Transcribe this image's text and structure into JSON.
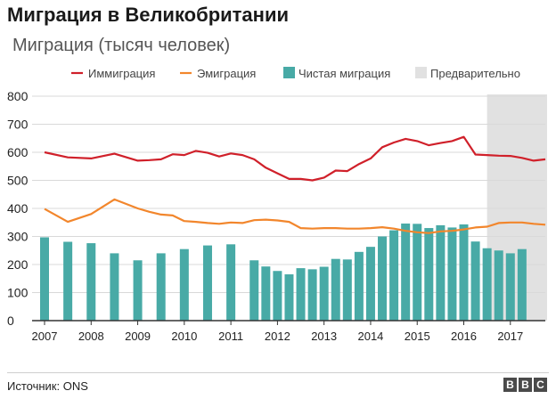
{
  "title": "Миграция в Великобритании",
  "subtitle": "Миграция (тысяч человек)",
  "source": "Источник: ONS",
  "logo": [
    "B",
    "B",
    "C"
  ],
  "colors": {
    "immigration": "#d0202a",
    "emigration": "#f2862c",
    "net": "#48aaa6",
    "provisional": "#e1e1e1",
    "grid": "#d9d9d9",
    "axis": "#333333"
  },
  "chart_data": {
    "type": "bar",
    "xlabel": "",
    "ylabel": "",
    "ylim": [
      0,
      800
    ],
    "yticks": [
      0,
      100,
      200,
      300,
      400,
      500,
      600,
      700,
      800
    ],
    "xlim": [
      2007,
      2017.75
    ],
    "xticks": [
      "2007",
      "2008",
      "2009",
      "2010",
      "2011",
      "2012",
      "2013",
      "2014",
      "2015",
      "2016",
      "2017"
    ],
    "grid": true,
    "legend_position": "top",
    "legend": [
      "Иммиграция",
      "Эмиграция",
      "Чистая миграция",
      "Предварительно"
    ],
    "provisional_range": [
      2016.5,
      2017.75
    ],
    "series": [
      {
        "name": "Иммиграция",
        "type": "line",
        "x": [
          2007.0,
          2007.5,
          2008.0,
          2008.5,
          2009.0,
          2009.25,
          2009.5,
          2009.75,
          2010.0,
          2010.25,
          2010.5,
          2010.75,
          2011.0,
          2011.25,
          2011.5,
          2011.75,
          2012.0,
          2012.25,
          2012.5,
          2012.75,
          2013.0,
          2013.25,
          2013.5,
          2013.75,
          2014.0,
          2014.25,
          2014.5,
          2014.75,
          2015.0,
          2015.25,
          2015.5,
          2015.75,
          2016.0,
          2016.25,
          2016.5,
          2016.75,
          2017.0,
          2017.25,
          2017.5,
          2017.75
        ],
        "values": [
          600,
          582,
          578,
          595,
          570,
          572,
          575,
          593,
          590,
          605,
          598,
          585,
          596,
          590,
          575,
          545,
          525,
          505,
          505,
          500,
          510,
          535,
          533,
          558,
          578,
          618,
          635,
          648,
          640,
          625,
          633,
          640,
          655,
          592,
          590,
          588,
          587,
          580,
          570,
          575
        ]
      },
      {
        "name": "Эмиграция",
        "type": "line",
        "x": [
          2007.0,
          2007.5,
          2008.0,
          2008.5,
          2009.0,
          2009.25,
          2009.5,
          2009.75,
          2010.0,
          2010.25,
          2010.5,
          2010.75,
          2011.0,
          2011.25,
          2011.5,
          2011.75,
          2012.0,
          2012.25,
          2012.5,
          2012.75,
          2013.0,
          2013.25,
          2013.5,
          2013.75,
          2014.0,
          2014.25,
          2014.5,
          2014.75,
          2015.0,
          2015.25,
          2015.5,
          2015.75,
          2016.0,
          2016.25,
          2016.5,
          2016.75,
          2017.0,
          2017.25,
          2017.5,
          2017.75
        ],
        "values": [
          398,
          352,
          380,
          432,
          400,
          388,
          378,
          375,
          355,
          352,
          348,
          345,
          350,
          348,
          358,
          360,
          357,
          352,
          330,
          328,
          330,
          330,
          328,
          328,
          330,
          333,
          328,
          320,
          315,
          312,
          318,
          320,
          325,
          332,
          335,
          348,
          350,
          350,
          345,
          342
        ]
      },
      {
        "name": "Чистая миграция",
        "type": "bar",
        "x": [
          2007.0,
          2007.5,
          2008.0,
          2008.5,
          2009.0,
          2009.5,
          2010.0,
          2010.5,
          2011.0,
          2011.5,
          2011.75,
          2012.0,
          2012.25,
          2012.5,
          2012.75,
          2013.0,
          2013.25,
          2013.5,
          2013.75,
          2014.0,
          2014.25,
          2014.5,
          2014.75,
          2015.0,
          2015.25,
          2015.5,
          2015.75,
          2016.0,
          2016.25,
          2016.5,
          2016.75,
          2017.0,
          2017.25
        ],
        "values": [
          297,
          281,
          276,
          240,
          215,
          240,
          255,
          268,
          272,
          215,
          193,
          177,
          165,
          187,
          183,
          192,
          220,
          218,
          245,
          263,
          300,
          322,
          346,
          345,
          330,
          340,
          332,
          343,
          282,
          258,
          250,
          240,
          255
        ]
      }
    ]
  }
}
